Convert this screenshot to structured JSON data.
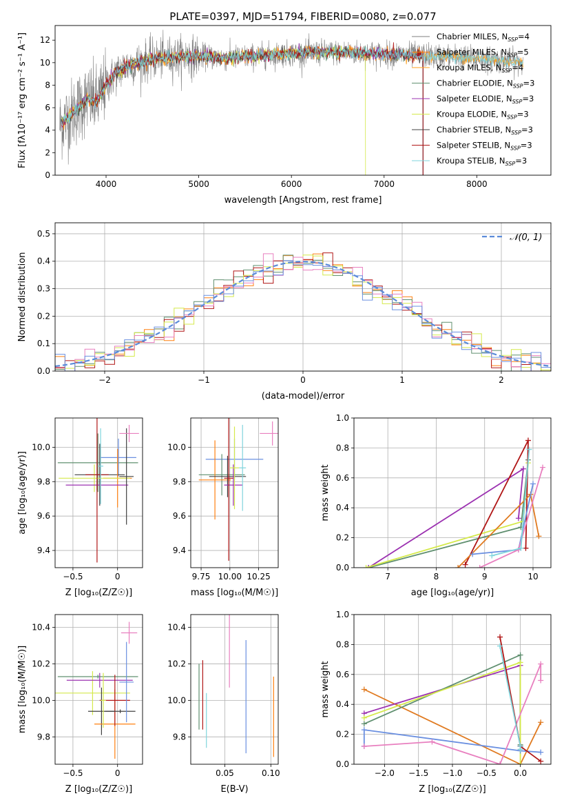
{
  "figure": {
    "title": "PLATE=0397, MJD=51794, FIBERID=0080, z=0.077"
  },
  "colors": [
    "#7f7f7f",
    "#ff7f0e",
    "#ff9f1a",
    "#5f8f6f",
    "#9b30b0",
    "#d4e94a",
    "#404040",
    "#b01515",
    "#7fd4dc",
    "#6a8fe0",
    "#e87fbf",
    "#e07a20"
  ],
  "chart_data": [
    {
      "id": "spectrum",
      "type": "line",
      "xlabel": "wavelength [Angstrom, rest frame]",
      "ylabel": "Flux [fλ10⁻¹⁷ erg cm⁻² s⁻¹ A⁻¹]",
      "xlim": [
        3450,
        8800
      ],
      "ylim": [
        0,
        13.3
      ],
      "xticks": [
        4000,
        5000,
        6000,
        7000,
        8000
      ],
      "yticks": [
        0,
        2,
        4,
        6,
        8,
        10,
        12
      ],
      "grid": false,
      "legend_position": "right",
      "data_continuum": {
        "x": [
          3500,
          3600,
          3700,
          3800,
          3900,
          4000,
          4100,
          4200,
          4300,
          4500,
          4700,
          5000,
          5300,
          5500,
          5800,
          6000,
          6300,
          6600,
          6900,
          7200,
          7500,
          7800,
          8100,
          8400,
          8500
        ],
        "y": [
          4.5,
          5.2,
          6.0,
          6.8,
          6.5,
          8.0,
          9.0,
          9.6,
          9.9,
          10.3,
          10.5,
          10.6,
          10.4,
          10.5,
          10.7,
          10.8,
          10.9,
          10.9,
          10.8,
          10.7,
          10.6,
          10.5,
          10.3,
          10.1,
          10.0
        ]
      },
      "series": [
        {
          "name": "Chabrier MILES, N_SSP=4",
          "color": "#7f7f7f",
          "legend": "Chabrier MILES, N",
          "sub": "SSP",
          "suffix": "=4"
        },
        {
          "name": "Salpeter MILES, N_SSP=5",
          "color": "#ff7f0e",
          "legend": "Salpeter MILES, N",
          "sub": "SSP",
          "suffix": "=5"
        },
        {
          "name": "Kroupa MILES, N_SSP=4",
          "color": "#ff9f1a",
          "legend": "Kroupa MILES, N",
          "sub": "SSP",
          "suffix": "=4"
        },
        {
          "name": "Chabrier ELODIE, N_SSP=3",
          "color": "#5f8f6f",
          "legend": "Chabrier ELODIE, N",
          "sub": "SSP",
          "suffix": "=3"
        },
        {
          "name": "Salpeter ELODIE, N_SSP=3",
          "color": "#9b30b0",
          "legend": "Salpeter ELODIE, N",
          "sub": "SSP",
          "suffix": "=3"
        },
        {
          "name": "Kroupa ELODIE, N_SSP=3",
          "color": "#d4e94a",
          "legend": "Kroupa ELODIE, N",
          "sub": "SSP",
          "suffix": "=3"
        },
        {
          "name": "Chabrier STELIB, N_SSP=3",
          "color": "#404040",
          "legend": "Chabrier STELIB, N",
          "sub": "SSP",
          "suffix": "=3"
        },
        {
          "name": "Salpeter STELIB, N_SSP=3",
          "color": "#b01515",
          "legend": "Salpeter STELIB, N",
          "sub": "SSP",
          "suffix": "=3"
        },
        {
          "name": "Kroupa STELIB, N_SSP=3",
          "color": "#7fd4dc",
          "legend": "Kroupa STELIB, N",
          "sub": "SSP",
          "suffix": "=3"
        }
      ]
    },
    {
      "id": "residuals",
      "type": "bar",
      "xlabel": "(data-model)/error",
      "ylabel": "Normed distribution",
      "xlim": [
        -2.5,
        2.5
      ],
      "ylim": [
        0,
        0.54
      ],
      "xticks": [
        -2,
        -1,
        0,
        1,
        2
      ],
      "yticks": [
        0.0,
        0.1,
        0.2,
        0.3,
        0.4,
        0.5
      ],
      "grid": true,
      "legend_position": "top-right",
      "legend": "𝒩(0, 1)",
      "bin_width": 0.1,
      "hist_colors": [
        "#ff7f0e",
        "#5f8f6f",
        "#b01515",
        "#d4e94a",
        "#e87fbf",
        "#6a8fe0"
      ],
      "reference_curve": "normal pdf, mean 0, sd 1"
    },
    {
      "id": "age-vs-Z",
      "type": "scatter",
      "xlabel": "Z [log₁₀(Z/Z☉)]",
      "ylabel": "age  [log₁₀(age/yr)]",
      "xlim": [
        -0.7,
        0.28
      ],
      "ylim": [
        9.3,
        10.17
      ],
      "xticks": [
        -0.5,
        0.0
      ],
      "yticks": [
        9.4,
        9.6,
        9.8,
        10.0
      ],
      "grid": true,
      "errorbars": [
        {
          "x": -0.22,
          "y": 9.91,
          "xerr": 0.45,
          "yerr": 0.17,
          "color": "#5f8f6f"
        },
        {
          "x": 0.01,
          "y": 9.94,
          "xerr": 0.2,
          "yerr": 0.11,
          "color": "#6a8fe0"
        },
        {
          "x": -0.2,
          "y": 9.84,
          "xerr": 0.28,
          "yerr": 0.18,
          "color": "#404040"
        },
        {
          "x": 0.0,
          "y": 9.82,
          "xerr": 0.16,
          "yerr": 0.17,
          "color": "#ff7f0e"
        },
        {
          "x": -0.26,
          "y": 9.82,
          "xerr": 0.4,
          "yerr": 0.08,
          "color": "#d4e94a"
        },
        {
          "x": -0.23,
          "y": 9.78,
          "xerr": 0.35,
          "yerr": 0.03,
          "color": "#9b30b0"
        },
        {
          "x": -0.23,
          "y": 9.84,
          "xerr": 0.13,
          "yerr": 0.51,
          "color": "#b01515"
        },
        {
          "x": 0.1,
          "y": 9.83,
          "xerr": 0.08,
          "yerr": 0.28,
          "color": "#404040"
        },
        {
          "x": 0.13,
          "y": 10.08,
          "xerr": 0.11,
          "yerr": 0.05,
          "color": "#e87fbf"
        },
        {
          "x": -0.19,
          "y": 9.89,
          "xerr": 0.03,
          "yerr": 0.22,
          "color": "#7fd4dc"
        }
      ]
    },
    {
      "id": "age-vs-mass",
      "type": "scatter",
      "xlabel": "mass [log₁₀(M/M☉)]",
      "ylabel": "",
      "xlim": [
        9.66,
        10.42
      ],
      "ylim": [
        9.3,
        10.17
      ],
      "xticks": [
        9.75,
        10.0,
        10.25
      ],
      "tick_labels": [
        "9.75",
        "10.00",
        "10.25"
      ],
      "yticks": [
        9.4,
        9.6,
        9.8,
        10.0
      ],
      "grid": true,
      "errorbars": [
        {
          "x": 10.04,
          "y": 9.93,
          "xerr": 0.25,
          "yerr": 0.12,
          "color": "#6a8fe0"
        },
        {
          "x": 9.93,
          "y": 9.84,
          "xerr": 0.2,
          "yerr": 0.12,
          "color": "#5f8f6f"
        },
        {
          "x": 9.87,
          "y": 9.81,
          "xerr": 0.14,
          "yerr": 0.23,
          "color": "#ff7f0e"
        },
        {
          "x": 9.98,
          "y": 9.83,
          "xerr": 0.16,
          "yerr": 0.12,
          "color": "#404040"
        },
        {
          "x": 10.03,
          "y": 9.78,
          "xerr": 0.08,
          "yerr": 0.12,
          "color": "#9b30b0"
        },
        {
          "x": 9.99,
          "y": 9.82,
          "xerr": 0.04,
          "yerr": 0.48,
          "color": "#b01515"
        },
        {
          "x": 10.37,
          "y": 10.08,
          "xerr": 0.11,
          "yerr": 0.07,
          "color": "#e87fbf"
        },
        {
          "x": 10.04,
          "y": 9.88,
          "xerr": 0.04,
          "yerr": 0.24,
          "color": "#d4e94a"
        },
        {
          "x": 10.11,
          "y": 9.88,
          "xerr": 0.03,
          "yerr": 0.25,
          "color": "#7fd4dc"
        }
      ]
    },
    {
      "id": "mass-weight-vs-age",
      "type": "line",
      "xlabel": "age  [log₁₀(age/yr)]",
      "ylabel": "mass weight",
      "xlim": [
        6.3,
        10.37
      ],
      "ylim": [
        0,
        1.0
      ],
      "xticks": [
        7,
        8,
        9,
        10
      ],
      "yticks": [
        0.0,
        0.2,
        0.4,
        0.6,
        0.8,
        1.0
      ],
      "grid": true,
      "series": [
        {
          "color": "#5f8f6f",
          "x": [
            6.6,
            9.75,
            9.9
          ],
          "y": [
            0.0,
            0.27,
            0.72
          ]
        },
        {
          "color": "#9b30b0",
          "x": [
            6.6,
            9.8,
            9.7
          ],
          "y": [
            0.0,
            0.66,
            0.33
          ]
        },
        {
          "color": "#d4e94a",
          "x": [
            6.55,
            9.8,
            9.9
          ],
          "y": [
            0.0,
            0.31,
            0.7
          ]
        },
        {
          "color": "#b01515",
          "x": [
            8.6,
            9.9,
            9.85
          ],
          "y": [
            0.02,
            0.85,
            0.13
          ]
        },
        {
          "color": "#e07a20",
          "x": [
            8.45,
            9.95,
            10.12
          ],
          "y": [
            0.0,
            0.49,
            0.21
          ]
        },
        {
          "color": "#6a8fe0",
          "x": [
            8.75,
            9.7,
            10.0
          ],
          "y": [
            0.09,
            0.12,
            0.56
          ]
        },
        {
          "color": "#e87fbf",
          "x": [
            8.9,
            9.7,
            10.2
          ],
          "y": [
            0.0,
            0.12,
            0.67
          ]
        },
        {
          "color": "#7fd4dc",
          "x": [
            9.15,
            9.75,
            9.92
          ],
          "y": [
            0.08,
            0.13,
            0.79
          ]
        }
      ]
    },
    {
      "id": "mass-vs-Z",
      "type": "scatter",
      "xlabel": "Z [log₁₀(Z/Z☉)]",
      "ylabel": "mass [log₁₀(M/M☉)]",
      "xlim": [
        -0.7,
        0.28
      ],
      "ylim": [
        9.65,
        10.47
      ],
      "xticks": [
        -0.5,
        0.0
      ],
      "yticks": [
        9.8,
        10.0,
        10.2,
        10.4
      ],
      "grid": true,
      "errorbars": [
        {
          "x": -0.22,
          "y": 10.13,
          "xerr": 0.45,
          "yerr": 0.01,
          "color": "#5f8f6f"
        },
        {
          "x": -0.28,
          "y": 10.04,
          "xerr": 0.42,
          "yerr": 0.12,
          "color": "#d4e94a"
        },
        {
          "x": -0.2,
          "y": 10.11,
          "xerr": 0.37,
          "yerr": 0.04,
          "color": "#9b30b0"
        },
        {
          "x": -0.18,
          "y": 9.94,
          "xerr": 0.15,
          "yerr": 0.13,
          "color": "#404040"
        },
        {
          "x": -0.03,
          "y": 9.87,
          "xerr": 0.23,
          "yerr": 0.19,
          "color": "#ff7f0e"
        },
        {
          "x": -0.03,
          "y": 10.0,
          "xerr": 0.17,
          "yerr": 0.14,
          "color": "#b01515"
        },
        {
          "x": 0.03,
          "y": 9.94,
          "xerr": 0.17,
          "yerr": 0.01,
          "color": "#404040"
        },
        {
          "x": 0.13,
          "y": 10.37,
          "xerr": 0.09,
          "yerr": 0.06,
          "color": "#e87fbf"
        },
        {
          "x": 0.1,
          "y": 10.1,
          "xerr": 0.08,
          "yerr": 0.22,
          "color": "#6a8fe0"
        },
        {
          "x": -0.16,
          "y": 10.0,
          "xerr": 0.03,
          "yerr": 0.15,
          "color": "#d4e94a"
        }
      ]
    },
    {
      "id": "mass-vs-ebv",
      "type": "scatter",
      "xlabel": "E(B-V)",
      "ylabel": "",
      "xlim": [
        0.013,
        0.108
      ],
      "ylim": [
        9.65,
        10.47
      ],
      "xticks": [
        0.05,
        0.1
      ],
      "tick_labels": [
        "0.05",
        "0.10"
      ],
      "yticks": [
        9.8,
        10.0,
        10.2,
        10.4
      ],
      "grid": true,
      "errorbars": [
        {
          "x": 0.022,
          "y": 10.02,
          "xerr": 0,
          "yerr": 0.18,
          "color": "#5f8f6f"
        },
        {
          "x": 0.026,
          "y": 10.03,
          "xerr": 0,
          "yerr": 0.19,
          "color": "#b01515"
        },
        {
          "x": 0.03,
          "y": 9.89,
          "xerr": 0,
          "yerr": 0.15,
          "color": "#7fd4dc"
        },
        {
          "x": 0.055,
          "y": 10.27,
          "xerr": 0,
          "yerr": 0.2,
          "color": "#e87fbf"
        },
        {
          "x": 0.073,
          "y": 10.02,
          "xerr": 0,
          "yerr": 0.31,
          "color": "#6a8fe0"
        },
        {
          "x": 0.103,
          "y": 9.91,
          "xerr": 0,
          "yerr": 0.22,
          "color": "#ff7f0e"
        }
      ]
    },
    {
      "id": "mass-weight-vs-Z",
      "type": "line",
      "xlabel": "Z [log₁₀(Z/Z☉)]",
      "ylabel": "mass weight",
      "xlim": [
        -2.45,
        0.45
      ],
      "ylim": [
        0,
        1.0
      ],
      "xticks": [
        -2.0,
        -1.5,
        -1.0,
        -0.5,
        0.0
      ],
      "yticks": [
        0.0,
        0.2,
        0.4,
        0.6,
        0.8,
        1.0
      ],
      "grid": true,
      "series": [
        {
          "color": "#e07a20",
          "x": [
            -2.3,
            0.0,
            0.3
          ],
          "y": [
            0.5,
            0.0,
            0.28
          ]
        },
        {
          "color": "#9b30b0",
          "x": [
            -2.3,
            0.0,
            0.0
          ],
          "y": [
            0.34,
            0.66,
            0.12
          ]
        },
        {
          "color": "#5f8f6f",
          "x": [
            -2.3,
            0.0,
            0.0
          ],
          "y": [
            0.27,
            0.73,
            0.13
          ]
        },
        {
          "color": "#d4e94a",
          "x": [
            -2.3,
            0.0,
            0.0
          ],
          "y": [
            0.31,
            0.68,
            0.0
          ]
        },
        {
          "color": "#6a8fe0",
          "x": [
            -2.3,
            -2.3,
            0.0,
            0.3
          ],
          "y": [
            0.12,
            0.23,
            0.09,
            0.08
          ]
        },
        {
          "color": "#e87fbf",
          "x": [
            -2.3,
            -1.3,
            -0.3,
            0.3,
            0.3
          ],
          "y": [
            0.12,
            0.15,
            0.0,
            0.67,
            0.56
          ]
        },
        {
          "color": "#b01515",
          "x": [
            -0.3,
            0.0,
            0.3
          ],
          "y": [
            0.85,
            0.12,
            0.02
          ]
        },
        {
          "color": "#7fd4dc",
          "x": [
            -0.3,
            0.0,
            0.0
          ],
          "y": [
            0.79,
            0.12,
            0.1
          ]
        }
      ]
    }
  ]
}
